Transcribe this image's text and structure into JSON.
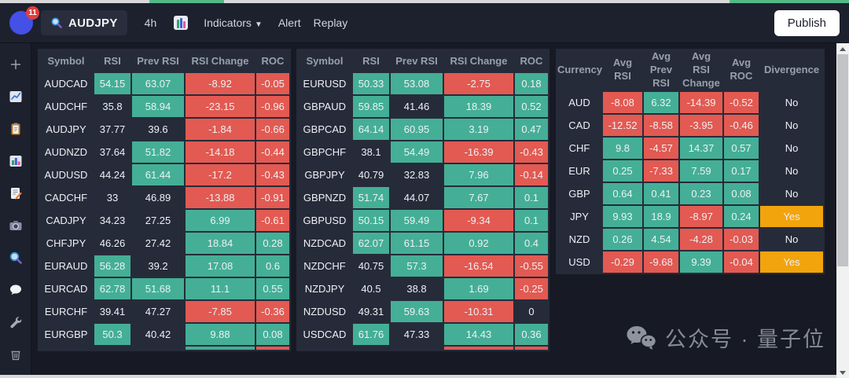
{
  "topbar": {
    "notification_count": "11",
    "symbol": "AUDJPY",
    "interval": "4h",
    "indicators_label": "Indicators",
    "indicators_caret": "▼",
    "alert_label": "Alert",
    "replay_label": "Replay",
    "publish_label": "Publish"
  },
  "sidebar": {
    "icons": [
      "add",
      "line-chart",
      "clipboard",
      "bar-chart",
      "memo",
      "camera",
      "search",
      "chat",
      "wrench",
      "trash"
    ]
  },
  "colors": {
    "green": "#44af96",
    "red": "#e25a52",
    "orange": "#f2a40d",
    "neutral_cell": "#262b3a",
    "panel_bg": "#262b3a",
    "page_bg": "#171a24",
    "navbar_bg": "#1d212e"
  },
  "tables": [
    {
      "name": "rsi-pairs-table-1",
      "headers": [
        "Symbol",
        "RSI",
        "Prev RSI",
        "RSI Change",
        "ROC"
      ],
      "rows": [
        {
          "cells": [
            {
              "v": "AUDCAD",
              "c": "n"
            },
            {
              "v": "54.15",
              "c": "g"
            },
            {
              "v": "63.07",
              "c": "g"
            },
            {
              "v": "-8.92",
              "c": "r"
            },
            {
              "v": "-0.05",
              "c": "r"
            }
          ]
        },
        {
          "cells": [
            {
              "v": "AUDCHF",
              "c": "n"
            },
            {
              "v": "35.8",
              "c": "n"
            },
            {
              "v": "58.94",
              "c": "g"
            },
            {
              "v": "-23.15",
              "c": "r"
            },
            {
              "v": "-0.96",
              "c": "r"
            }
          ]
        },
        {
          "cells": [
            {
              "v": "AUDJPY",
              "c": "n"
            },
            {
              "v": "37.77",
              "c": "n"
            },
            {
              "v": "39.6",
              "c": "n"
            },
            {
              "v": "-1.84",
              "c": "r"
            },
            {
              "v": "-0.66",
              "c": "r"
            }
          ]
        },
        {
          "cells": [
            {
              "v": "AUDNZD",
              "c": "n"
            },
            {
              "v": "37.64",
              "c": "n"
            },
            {
              "v": "51.82",
              "c": "g"
            },
            {
              "v": "-14.18",
              "c": "r"
            },
            {
              "v": "-0.44",
              "c": "r"
            }
          ]
        },
        {
          "cells": [
            {
              "v": "AUDUSD",
              "c": "n"
            },
            {
              "v": "44.24",
              "c": "n"
            },
            {
              "v": "61.44",
              "c": "g"
            },
            {
              "v": "-17.2",
              "c": "r"
            },
            {
              "v": "-0.43",
              "c": "r"
            }
          ]
        },
        {
          "cells": [
            {
              "v": "CADCHF",
              "c": "n"
            },
            {
              "v": "33",
              "c": "n"
            },
            {
              "v": "46.89",
              "c": "n"
            },
            {
              "v": "-13.88",
              "c": "r"
            },
            {
              "v": "-0.91",
              "c": "r"
            }
          ]
        },
        {
          "cells": [
            {
              "v": "CADJPY",
              "c": "n"
            },
            {
              "v": "34.23",
              "c": "n"
            },
            {
              "v": "27.25",
              "c": "n"
            },
            {
              "v": "6.99",
              "c": "g"
            },
            {
              "v": "-0.61",
              "c": "r"
            }
          ]
        },
        {
          "cells": [
            {
              "v": "CHFJPY",
              "c": "n"
            },
            {
              "v": "46.26",
              "c": "n"
            },
            {
              "v": "27.42",
              "c": "n"
            },
            {
              "v": "18.84",
              "c": "g"
            },
            {
              "v": "0.28",
              "c": "g"
            }
          ]
        },
        {
          "cells": [
            {
              "v": "EURAUD",
              "c": "n"
            },
            {
              "v": "56.28",
              "c": "g"
            },
            {
              "v": "39.2",
              "c": "n"
            },
            {
              "v": "17.08",
              "c": "g"
            },
            {
              "v": "0.6",
              "c": "g"
            }
          ]
        },
        {
          "cells": [
            {
              "v": "EURCAD",
              "c": "n"
            },
            {
              "v": "62.78",
              "c": "g"
            },
            {
              "v": "51.68",
              "c": "g"
            },
            {
              "v": "11.1",
              "c": "g"
            },
            {
              "v": "0.55",
              "c": "g"
            }
          ]
        },
        {
          "cells": [
            {
              "v": "EURCHF",
              "c": "n"
            },
            {
              "v": "39.41",
              "c": "n"
            },
            {
              "v": "47.27",
              "c": "n"
            },
            {
              "v": "-7.85",
              "c": "r"
            },
            {
              "v": "-0.36",
              "c": "r"
            }
          ]
        },
        {
          "cells": [
            {
              "v": "EURGBP",
              "c": "n"
            },
            {
              "v": "50.3",
              "c": "g"
            },
            {
              "v": "40.42",
              "c": "n"
            },
            {
              "v": "9.88",
              "c": "g"
            },
            {
              "v": "0.08",
              "c": "g"
            }
          ]
        }
      ],
      "partial_row": [
        "n",
        "n",
        "n",
        "g",
        "r"
      ]
    },
    {
      "name": "rsi-pairs-table-2",
      "headers": [
        "Symbol",
        "RSI",
        "Prev RSI",
        "RSI Change",
        "ROC"
      ],
      "rows": [
        {
          "cells": [
            {
              "v": "EURUSD",
              "c": "n"
            },
            {
              "v": "50.33",
              "c": "g"
            },
            {
              "v": "53.08",
              "c": "g"
            },
            {
              "v": "-2.75",
              "c": "r"
            },
            {
              "v": "0.18",
              "c": "g"
            }
          ]
        },
        {
          "cells": [
            {
              "v": "GBPAUD",
              "c": "n"
            },
            {
              "v": "59.85",
              "c": "g"
            },
            {
              "v": "41.46",
              "c": "n"
            },
            {
              "v": "18.39",
              "c": "g"
            },
            {
              "v": "0.52",
              "c": "g"
            }
          ]
        },
        {
          "cells": [
            {
              "v": "GBPCAD",
              "c": "n"
            },
            {
              "v": "64.14",
              "c": "g"
            },
            {
              "v": "60.95",
              "c": "g"
            },
            {
              "v": "3.19",
              "c": "g"
            },
            {
              "v": "0.47",
              "c": "g"
            }
          ]
        },
        {
          "cells": [
            {
              "v": "GBPCHF",
              "c": "n"
            },
            {
              "v": "38.1",
              "c": "n"
            },
            {
              "v": "54.49",
              "c": "g"
            },
            {
              "v": "-16.39",
              "c": "r"
            },
            {
              "v": "-0.43",
              "c": "r"
            }
          ]
        },
        {
          "cells": [
            {
              "v": "GBPJPY",
              "c": "n"
            },
            {
              "v": "40.79",
              "c": "n"
            },
            {
              "v": "32.83",
              "c": "n"
            },
            {
              "v": "7.96",
              "c": "g"
            },
            {
              "v": "-0.14",
              "c": "r"
            }
          ]
        },
        {
          "cells": [
            {
              "v": "GBPNZD",
              "c": "n"
            },
            {
              "v": "51.74",
              "c": "g"
            },
            {
              "v": "44.07",
              "c": "n"
            },
            {
              "v": "7.67",
              "c": "g"
            },
            {
              "v": "0.1",
              "c": "g"
            }
          ]
        },
        {
          "cells": [
            {
              "v": "GBPUSD",
              "c": "n"
            },
            {
              "v": "50.15",
              "c": "g"
            },
            {
              "v": "59.49",
              "c": "g"
            },
            {
              "v": "-9.34",
              "c": "r"
            },
            {
              "v": "0.1",
              "c": "g"
            }
          ]
        },
        {
          "cells": [
            {
              "v": "NZDCAD",
              "c": "n"
            },
            {
              "v": "62.07",
              "c": "g"
            },
            {
              "v": "61.15",
              "c": "g"
            },
            {
              "v": "0.92",
              "c": "g"
            },
            {
              "v": "0.4",
              "c": "g"
            }
          ]
        },
        {
          "cells": [
            {
              "v": "NZDCHF",
              "c": "n"
            },
            {
              "v": "40.75",
              "c": "n"
            },
            {
              "v": "57.3",
              "c": "g"
            },
            {
              "v": "-16.54",
              "c": "r"
            },
            {
              "v": "-0.55",
              "c": "r"
            }
          ]
        },
        {
          "cells": [
            {
              "v": "NZDJPY",
              "c": "n"
            },
            {
              "v": "40.5",
              "c": "n"
            },
            {
              "v": "38.8",
              "c": "n"
            },
            {
              "v": "1.69",
              "c": "g"
            },
            {
              "v": "-0.25",
              "c": "r"
            }
          ]
        },
        {
          "cells": [
            {
              "v": "NZDUSD",
              "c": "n"
            },
            {
              "v": "49.31",
              "c": "n"
            },
            {
              "v": "59.63",
              "c": "g"
            },
            {
              "v": "-10.31",
              "c": "r"
            },
            {
              "v": "0",
              "c": "n"
            }
          ]
        },
        {
          "cells": [
            {
              "v": "USDCAD",
              "c": "n"
            },
            {
              "v": "61.76",
              "c": "g"
            },
            {
              "v": "47.33",
              "c": "n"
            },
            {
              "v": "14.43",
              "c": "g"
            },
            {
              "v": "0.36",
              "c": "g"
            }
          ]
        }
      ],
      "partial_row": [
        "n",
        "n",
        "n",
        "r",
        "r"
      ]
    },
    {
      "name": "currency-average-table",
      "headers": [
        "Currency",
        "Avg\nRSI",
        "Avg\nPrev\nRSI",
        "Avg\nRSI\nChange",
        "Avg\nROC",
        "Divergence"
      ],
      "rows": [
        {
          "cells": [
            {
              "v": "AUD",
              "c": "n"
            },
            {
              "v": "-8.08",
              "c": "r"
            },
            {
              "v": "6.32",
              "c": "g"
            },
            {
              "v": "-14.39",
              "c": "r"
            },
            {
              "v": "-0.52",
              "c": "r"
            },
            {
              "v": "No",
              "c": "n"
            }
          ]
        },
        {
          "cells": [
            {
              "v": "CAD",
              "c": "n"
            },
            {
              "v": "-12.52",
              "c": "r"
            },
            {
              "v": "-8.58",
              "c": "r"
            },
            {
              "v": "-3.95",
              "c": "r"
            },
            {
              "v": "-0.46",
              "c": "r"
            },
            {
              "v": "No",
              "c": "n"
            }
          ]
        },
        {
          "cells": [
            {
              "v": "CHF",
              "c": "n"
            },
            {
              "v": "9.8",
              "c": "g"
            },
            {
              "v": "-4.57",
              "c": "r"
            },
            {
              "v": "14.37",
              "c": "g"
            },
            {
              "v": "0.57",
              "c": "g"
            },
            {
              "v": "No",
              "c": "n"
            }
          ]
        },
        {
          "cells": [
            {
              "v": "EUR",
              "c": "n"
            },
            {
              "v": "0.25",
              "c": "g"
            },
            {
              "v": "-7.33",
              "c": "r"
            },
            {
              "v": "7.59",
              "c": "g"
            },
            {
              "v": "0.17",
              "c": "g"
            },
            {
              "v": "No",
              "c": "n"
            }
          ]
        },
        {
          "cells": [
            {
              "v": "GBP",
              "c": "n"
            },
            {
              "v": "0.64",
              "c": "g"
            },
            {
              "v": "0.41",
              "c": "g"
            },
            {
              "v": "0.23",
              "c": "g"
            },
            {
              "v": "0.08",
              "c": "g"
            },
            {
              "v": "No",
              "c": "n"
            }
          ]
        },
        {
          "cells": [
            {
              "v": "JPY",
              "c": "n"
            },
            {
              "v": "9.93",
              "c": "g"
            },
            {
              "v": "18.9",
              "c": "g"
            },
            {
              "v": "-8.97",
              "c": "r"
            },
            {
              "v": "0.24",
              "c": "g"
            },
            {
              "v": "Yes",
              "c": "o"
            }
          ]
        },
        {
          "cells": [
            {
              "v": "NZD",
              "c": "n"
            },
            {
              "v": "0.26",
              "c": "g"
            },
            {
              "v": "4.54",
              "c": "g"
            },
            {
              "v": "-4.28",
              "c": "r"
            },
            {
              "v": "-0.03",
              "c": "r"
            },
            {
              "v": "No",
              "c": "n"
            }
          ]
        },
        {
          "cells": [
            {
              "v": "USD",
              "c": "n"
            },
            {
              "v": "-0.29",
              "c": "r"
            },
            {
              "v": "-9.68",
              "c": "r"
            },
            {
              "v": "9.39",
              "c": "g"
            },
            {
              "v": "-0.04",
              "c": "r"
            },
            {
              "v": "Yes",
              "c": "o"
            }
          ]
        }
      ],
      "partial_row": null
    }
  ],
  "watermark": {
    "text": "公众号 · 量子位"
  }
}
